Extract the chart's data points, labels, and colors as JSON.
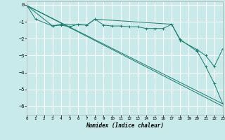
{
  "xlabel": "Humidex (Indice chaleur)",
  "background_color": "#c8eaea",
  "grid_color": "#ffffff",
  "line_color": "#1a7a6e",
  "xlim": [
    0,
    23
  ],
  "ylim": [
    -6.5,
    0.2
  ],
  "yticks": [
    0,
    -1,
    -2,
    -3,
    -4,
    -5,
    -6
  ],
  "xticks": [
    0,
    1,
    2,
    3,
    4,
    5,
    6,
    7,
    8,
    9,
    10,
    11,
    12,
    13,
    14,
    15,
    16,
    17,
    18,
    19,
    20,
    21,
    22,
    23
  ],
  "line1_x": [
    0,
    1,
    3,
    4,
    5,
    6,
    7,
    8,
    9,
    10,
    11,
    12,
    13,
    14,
    15,
    16,
    17,
    18,
    20,
    21,
    22,
    23
  ],
  "line1_y": [
    -0.05,
    -0.85,
    -1.25,
    -1.2,
    -1.3,
    -1.15,
    -1.2,
    -0.85,
    -1.2,
    -1.25,
    -1.25,
    -1.3,
    -1.3,
    -1.4,
    -1.4,
    -1.4,
    -1.15,
    -2.05,
    -2.75,
    -3.65,
    -4.65,
    -5.85
  ],
  "line2_x": [
    0,
    23
  ],
  "line2_y": [
    -0.05,
    -6.0
  ],
  "line3_x": [
    0,
    23
  ],
  "line3_y": [
    -0.05,
    -5.85
  ],
  "line4_x": [
    0,
    3,
    4,
    7,
    8,
    17,
    18,
    20,
    21,
    22,
    23
  ],
  "line4_y": [
    -0.05,
    -1.25,
    -1.15,
    -1.2,
    -0.85,
    -1.15,
    -2.1,
    -2.65,
    -3.0,
    -3.65,
    -2.6
  ]
}
